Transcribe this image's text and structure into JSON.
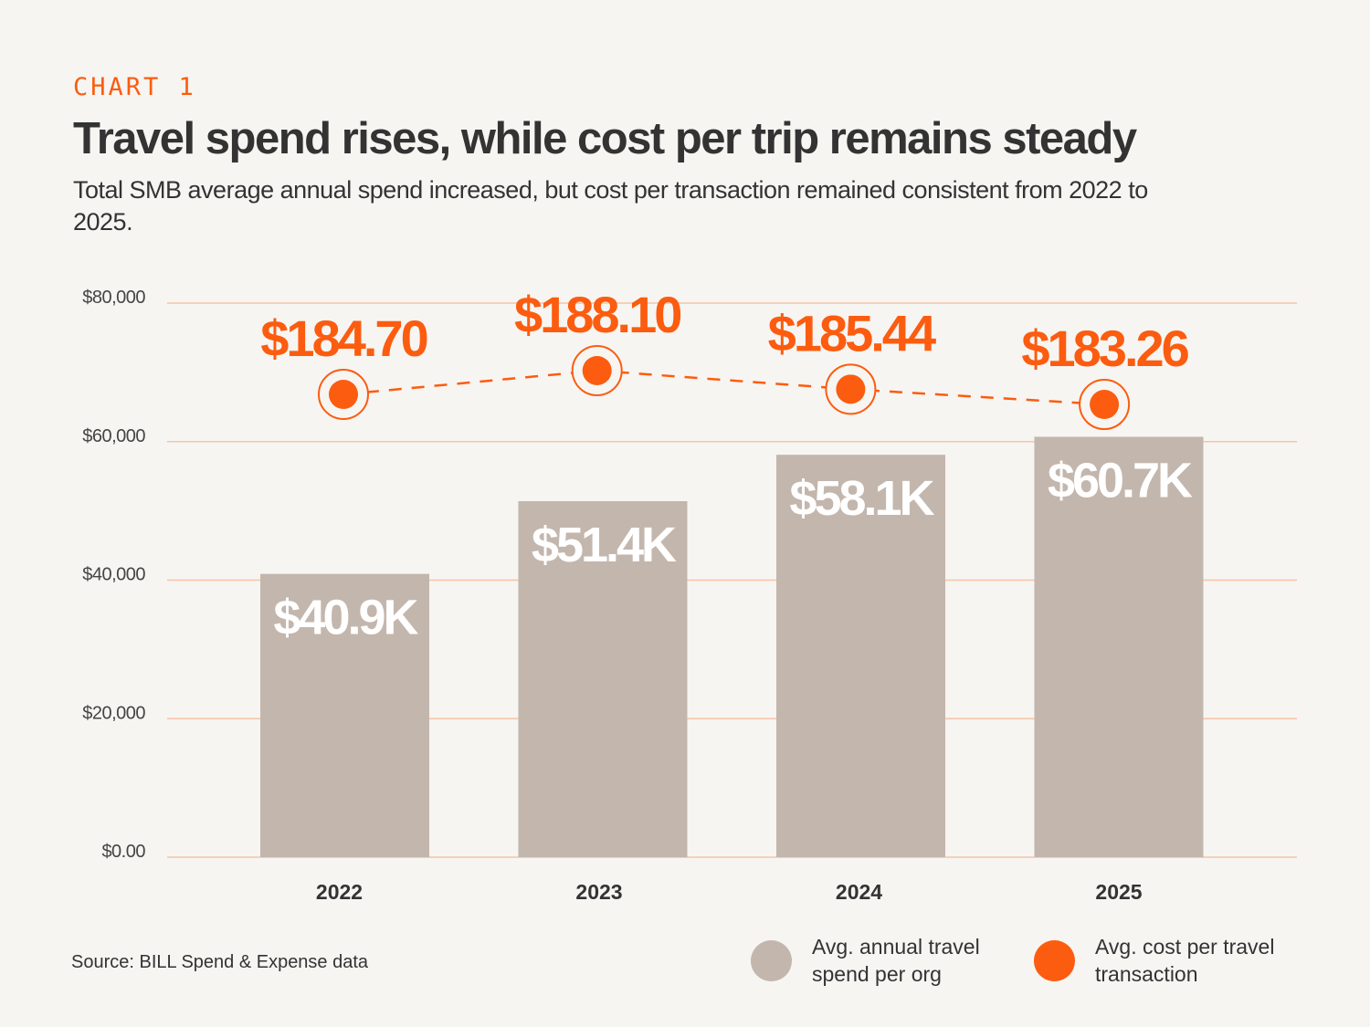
{
  "header": {
    "kicker": "CHART 1",
    "title": "Travel spend rises, while cost per trip remains steady",
    "subtitle": "Total SMB average annual spend increased, but cost per transaction remained consistent from 2022 to 2025."
  },
  "chart_data": {
    "type": "bar+line",
    "categories": [
      "2022",
      "2023",
      "2024",
      "2025"
    ],
    "yticks": [
      "$0.00",
      "$20,000",
      "$40,000",
      "$60,000",
      "$80,000"
    ],
    "ylim": [
      0,
      80000
    ],
    "grid": true,
    "series": [
      {
        "name": "Avg. annual travel spend per org",
        "type": "bar",
        "values": [
          40900,
          51400,
          58100,
          60700
        ],
        "labels": [
          "$40.9K",
          "$51.4K",
          "$58.1K",
          "$60.7K"
        ],
        "color": "#c3b6ad"
      },
      {
        "name": "Avg. cost per travel transaction",
        "type": "line",
        "values": [
          184.7,
          188.1,
          185.44,
          183.26
        ],
        "labels": [
          "$184.70",
          "$188.10",
          "$185.44",
          "$183.26"
        ],
        "color": "#fc5c0f"
      }
    ],
    "legend_placement": "bottom-right"
  },
  "legend": [
    {
      "label": "Avg. annual travel spend per org",
      "color": "#c3b6ad"
    },
    {
      "label": "Avg. cost per travel transaction",
      "color": "#fc5c0f"
    }
  ],
  "source": "Source: BILL Spend & Expense data"
}
